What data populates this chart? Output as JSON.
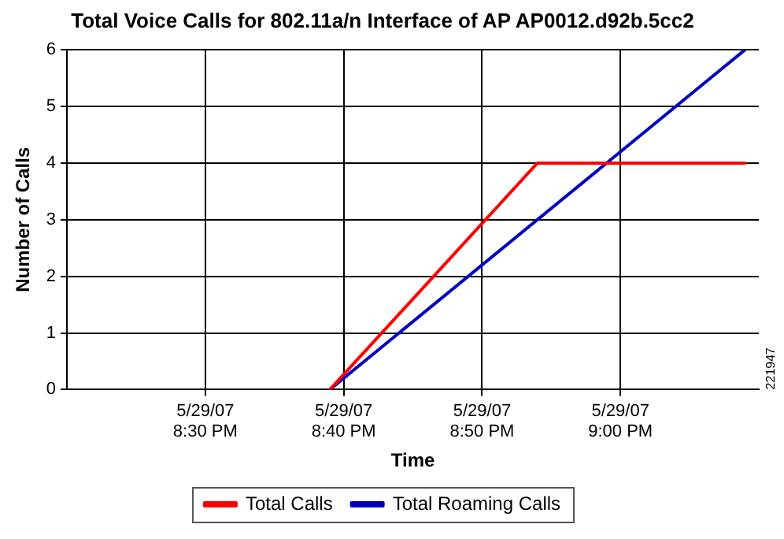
{
  "chart_data": {
    "type": "line",
    "title": "Total Voice Calls for 802.11a/n Interface of AP AP0012.d92b.5cc2",
    "xlabel": "Time",
    "ylabel": "Number of Calls",
    "xlim": [
      "--05-29T20:20",
      "--05-29T21:10"
    ],
    "xticks": [
      {
        "value": "--05-29T20:30",
        "label": "5/29/07\n8:30 PM"
      },
      {
        "value": "--05-29T20:40",
        "label": "5/29/07\n8:40 PM"
      },
      {
        "value": "--05-29T20:50",
        "label": "5/29/07\n8:50 PM"
      },
      {
        "value": "--05-29T21:00",
        "label": "5/29/07\n9:00 PM"
      }
    ],
    "ylim": [
      0,
      6
    ],
    "yticks": [
      0,
      1,
      2,
      3,
      4,
      5,
      6
    ],
    "series": [
      {
        "name": "Total Calls",
        "color": "#ff0000",
        "x": [
          "--05-29T20:39",
          "--05-29T20:54",
          "--05-29T21:09"
        ],
        "values": [
          0,
          4,
          4
        ]
      },
      {
        "name": "Total Roaming Calls",
        "color": "#0000c0",
        "x": [
          "--05-29T20:39",
          "--05-29T21:09"
        ],
        "values": [
          0,
          6
        ]
      }
    ],
    "grid": true,
    "legend": "bottom",
    "marker": "none",
    "line_style": "solid",
    "annotations": [
      "221947"
    ]
  }
}
